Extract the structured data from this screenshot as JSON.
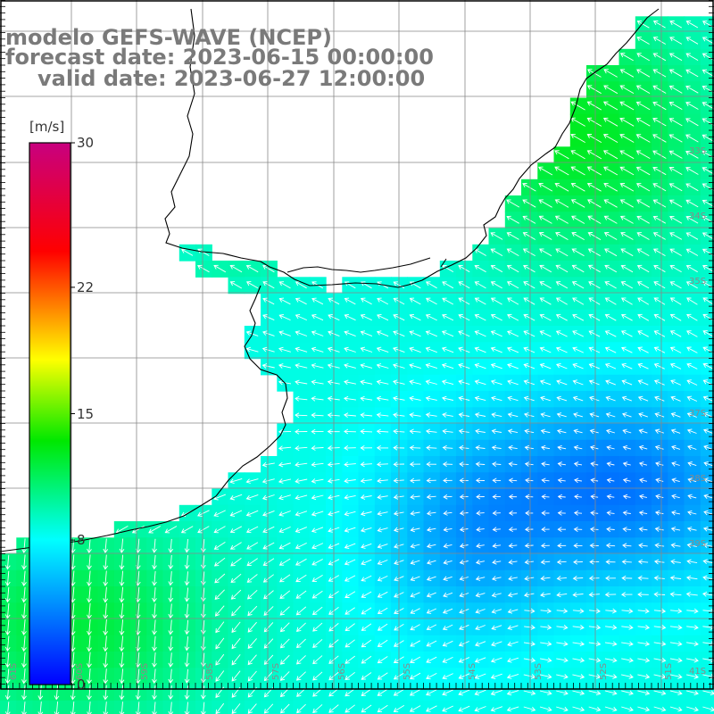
{
  "header": {
    "line1": "modelo GEFS-WAVE (NCEP)",
    "line2": "forecast date: 2023-06-15 00:00:00",
    "line3": "valid date: 2023-06-27 12:00:00"
  },
  "colorbar": {
    "unit": "[m/s]",
    "ticks": [
      "30",
      "22",
      "15",
      "8",
      "0"
    ],
    "min": 0,
    "max": 30,
    "stops": [
      "#0000ff",
      "#00ffff",
      "#00e800",
      "#ffff00",
      "#ff0000",
      "#c8007f"
    ]
  },
  "map": {
    "lat_labels": [
      "33S",
      "34S",
      "35S",
      "37S",
      "38S",
      "39S",
      "41S"
    ],
    "lon_labels": [
      "61S",
      "60S",
      "59S",
      "58S",
      "57S",
      "56S",
      "55S",
      "54S",
      "53S",
      "52S",
      "51S"
    ],
    "colors": {
      "land": "#ffffff",
      "grid": "#888888",
      "coast": "#000000",
      "arrows": "#ffffff",
      "title": "#7a7a7a"
    }
  }
}
